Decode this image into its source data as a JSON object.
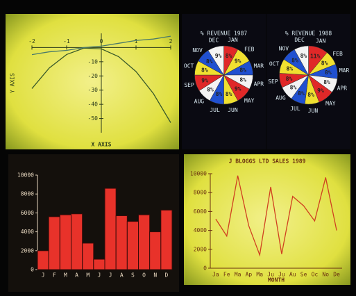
{
  "chart_data": [
    {
      "type": "line",
      "x_label": "X AXIS",
      "y_label": "Y AXIS",
      "x": [
        -2,
        -1.5,
        -1,
        -0.5,
        0,
        0.5,
        1,
        1.5,
        2
      ],
      "series": [
        {
          "color": "#3a5a2a",
          "values": [
            -28.9,
            -14.4,
            -4.9,
            -0.4,
            -0.9,
            -6.4,
            -16.9,
            -32.4,
            -52.9
          ]
        },
        {
          "color": "#4a7a6a",
          "values": [
            -5,
            -3,
            -2,
            0,
            1,
            3,
            5,
            6,
            8
          ]
        }
      ],
      "xlim": [
        -2,
        2
      ],
      "xticks": [
        -2,
        -1,
        0,
        1,
        2
      ],
      "ylim": [
        -60,
        10
      ],
      "yticks": [
        -10,
        -20,
        -30,
        -40,
        -50
      ]
    },
    {
      "type": "pie",
      "title": "% REVENUE 1987",
      "categories": [
        "JAN",
        "FEB",
        "MAR",
        "APR",
        "MAY",
        "JUN",
        "JUL",
        "AUG",
        "SEP",
        "OCT",
        "NOV",
        "DEC"
      ],
      "values": [
        8,
        9,
        8,
        8,
        9,
        8,
        8,
        8,
        9,
        8,
        8,
        9
      ],
      "value_labels": [
        "8%",
        "9%",
        "8%",
        "8%",
        "9%",
        "8%",
        "8%",
        "8%",
        "9%",
        "8%",
        "8%",
        "9%"
      ],
      "colors": [
        "#e02828",
        "#f0e030",
        "#2050d0",
        "#f4f4f4",
        "#e02828",
        "#f0e030",
        "#2050d0",
        "#f4f4f4",
        "#e02828",
        "#f0e030",
        "#2050d0",
        "#f4f4f4"
      ]
    },
    {
      "type": "pie",
      "title": "% REVENUE 1988",
      "categories": [
        "JAN",
        "FEB",
        "MAR",
        "APR",
        "MAY",
        "JUN",
        "JUL",
        "AUG",
        "SEP",
        "OCT",
        "NOV",
        "DEC"
      ],
      "values": [
        11,
        8,
        8,
        8,
        9,
        8,
        8,
        8,
        8,
        8,
        8,
        8
      ],
      "value_labels": [
        "11%",
        "8%",
        "8%",
        "8%",
        "9%",
        "8%",
        "8%",
        "8%",
        "8%",
        "8%",
        "8%",
        "8%"
      ],
      "colors": [
        "#e02828",
        "#f0e030",
        "#2050d0",
        "#f4f4f4",
        "#e02828",
        "#f0e030",
        "#2050d0",
        "#f4f4f4",
        "#e02828",
        "#f0e030",
        "#2050d0",
        "#f4f4f4"
      ]
    },
    {
      "type": "bar",
      "color": "#e8322a",
      "categories": [
        "J",
        "F",
        "M",
        "A",
        "M",
        "J",
        "J",
        "A",
        "S",
        "O",
        "N",
        "D"
      ],
      "values": [
        2000,
        5600,
        5800,
        5900,
        2800,
        1100,
        8600,
        5700,
        5100,
        5800,
        4000,
        6300
      ],
      "ylim": [
        0,
        10000
      ],
      "yticks": [
        0,
        2000,
        4000,
        6000,
        8000,
        10000
      ]
    },
    {
      "type": "line",
      "title": "J BLOGGS LTD SALES 1989",
      "x_label": "MONTH",
      "categories": [
        "Ja",
        "Fe",
        "Ma",
        "Ap",
        "Ma",
        "Ju",
        "Ju",
        "Au",
        "Se",
        "Oc",
        "No",
        "De"
      ],
      "series": [
        {
          "color": "#d04020",
          "values": [
            5200,
            3400,
            9800,
            4500,
            1400,
            8600,
            1500,
            7600,
            6600,
            5000,
            9600,
            4000
          ]
        }
      ],
      "ylim": [
        0,
        10000
      ],
      "yticks": [
        0,
        2000,
        4000,
        6000,
        8000,
        10000
      ]
    }
  ]
}
